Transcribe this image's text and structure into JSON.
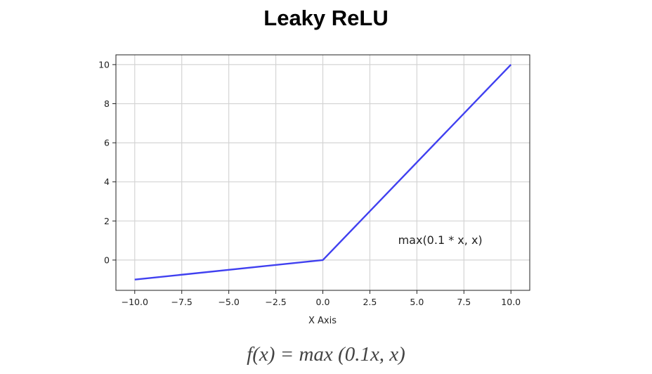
{
  "chart_data": {
    "type": "line",
    "title": "Leaky ReLU",
    "xlabel": "X Axis",
    "ylabel": "",
    "xlim": [
      -11,
      11
    ],
    "ylim": [
      -1.55,
      10.5
    ],
    "grid": true,
    "x_ticks": [
      -10.0,
      -7.5,
      -5.0,
      -2.5,
      0.0,
      2.5,
      5.0,
      7.5,
      10.0
    ],
    "x_tick_labels": [
      "−10.0",
      "−7.5",
      "−5.0",
      "−2.5",
      "0.0",
      "2.5",
      "5.0",
      "7.5",
      "10.0"
    ],
    "y_ticks": [
      0,
      2,
      4,
      6,
      8,
      10
    ],
    "y_tick_labels": [
      "0",
      "2",
      "4",
      "6",
      "8",
      "10"
    ],
    "series": [
      {
        "color": "#4040f0",
        "x": [
          -10,
          0,
          10
        ],
        "y": [
          -1,
          0,
          10
        ]
      }
    ],
    "annotation": {
      "text": "max(0.1 * x, x)",
      "x": 4.0,
      "y": 1.0
    }
  },
  "formula": "f(x) = max (0.1x, x)"
}
